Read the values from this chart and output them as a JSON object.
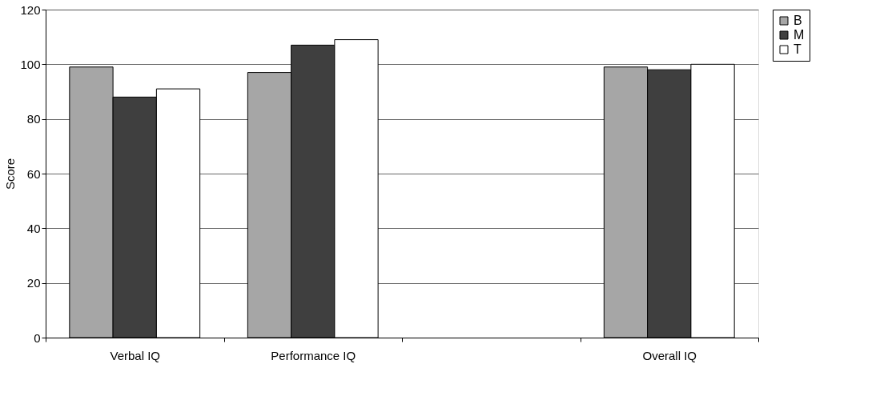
{
  "chart_data": {
    "type": "bar",
    "ylabel": "Score",
    "categories": [
      "Verbal IQ",
      "Performance IQ",
      null,
      "Overall IQ"
    ],
    "series": [
      {
        "name": "B",
        "color": "#a6a6a6",
        "values": [
          99,
          97,
          null,
          99
        ]
      },
      {
        "name": "M",
        "color": "#3f3f3f",
        "values": [
          88,
          107,
          null,
          98
        ]
      },
      {
        "name": "T",
        "color": "#ffffff",
        "values": [
          91,
          109,
          null,
          100
        ]
      }
    ],
    "ylim": [
      0,
      120
    ],
    "yticks": [
      0,
      20,
      40,
      60,
      80,
      100,
      120
    ],
    "grid": "y",
    "legend": "right"
  }
}
